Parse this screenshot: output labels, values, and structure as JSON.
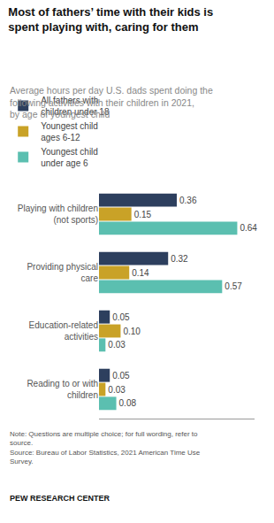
{
  "chart_data": {
    "type": "bar",
    "orientation": "horizontal",
    "title": "Most of fathers’ time with their kids is\nspent playing with, caring for them",
    "subtitle": "Average hours per day U.S. dads spent doing the\nfollowing activities with their children in 2021,\nby age of youngest child",
    "categories": [
      "Playing with children\n(not sports)",
      "Providing physical\ncare",
      "Education-related\nactivities",
      "Reading to or with\nchildren"
    ],
    "series": [
      {
        "name": "All fathers with\nchildren under 18",
        "color": "#2d3f5e",
        "values": [
          0.36,
          0.32,
          0.05,
          0.05
        ],
        "value_labels": [
          "0.36",
          "0.32",
          "0.05",
          "0.05"
        ]
      },
      {
        "name": "Youngest child\nages 6-12",
        "color": "#c9a227",
        "values": [
          0.15,
          0.14,
          0.1,
          0.03
        ],
        "value_labels": [
          "0.15",
          "0.14",
          "0.10",
          "0.03"
        ]
      },
      {
        "name": "Youngest child\nunder age 6",
        "color": "#5bbfb0",
        "values": [
          0.64,
          0.57,
          0.03,
          0.08
        ],
        "value_labels": [
          "0.64",
          "0.57",
          "0.03",
          "0.08"
        ]
      }
    ],
    "xlim": [
      0,
      0.72
    ],
    "data_labels": true,
    "tick_labels": false,
    "grid": false,
    "annotations": [
      "Note: Questions are multiple choice; for full wording, refer to\nsource.\nSource: Bureau of Labor Statistics, 2021 American Time Use\nSurvey.",
      "PEW RESEARCH CENTER"
    ]
  }
}
